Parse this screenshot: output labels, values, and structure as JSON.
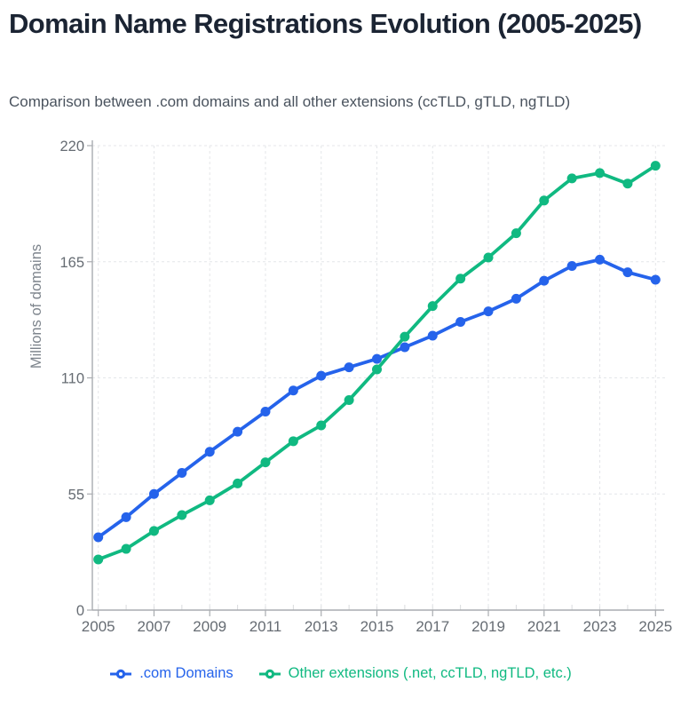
{
  "header": {
    "title": "Domain Name Registrations Evolution (2005-2025)",
    "subtitle": "Comparison between .com domains and all other extensions (ccTLD, gTLD, ngTLD)"
  },
  "chart_data": {
    "type": "line",
    "x": [
      2005,
      2006,
      2007,
      2008,
      2009,
      2010,
      2011,
      2012,
      2013,
      2014,
      2015,
      2016,
      2017,
      2018,
      2019,
      2020,
      2021,
      2022,
      2023,
      2024,
      2025
    ],
    "x_tick_labels": [
      "2005",
      "2007",
      "2009",
      "2011",
      "2013",
      "2015",
      "2017",
      "2019",
      "2021",
      "2023",
      "2025"
    ],
    "ylabel": "Millions of domains",
    "y_ticks": [
      0,
      55,
      110,
      165,
      220
    ],
    "ylim": [
      0,
      220
    ],
    "grid": true,
    "grid_style": "dashed",
    "legend_position": "bottom",
    "marker": "circle",
    "series": [
      {
        "name": ".com Domains",
        "color": "#2563eb",
        "values": [
          34.5,
          44,
          55,
          65,
          75,
          84.5,
          94,
          104,
          111,
          115,
          119,
          124.5,
          130,
          136.5,
          141.5,
          147.5,
          156,
          163,
          166,
          160,
          156.5
        ]
      },
      {
        "name": "Other extensions (.net, ccTLD, ngTLD, etc.)",
        "color": "#10b981",
        "values": [
          24,
          29,
          37.5,
          45,
          52,
          60,
          70,
          80,
          87.5,
          99.5,
          114,
          129.5,
          144,
          157,
          167,
          178.5,
          194,
          204.5,
          207,
          202,
          210.5
        ]
      }
    ]
  },
  "colors": {
    "background": "#ffffff",
    "title": "#1b2433",
    "subtitle": "#4a535e",
    "tick_text": "#666c73",
    "axis_title_text": "#7d848c",
    "axis_line": "#a9acb0",
    "grid_line": "#e4e6e9",
    "minor_tick": "#d9dbde"
  }
}
